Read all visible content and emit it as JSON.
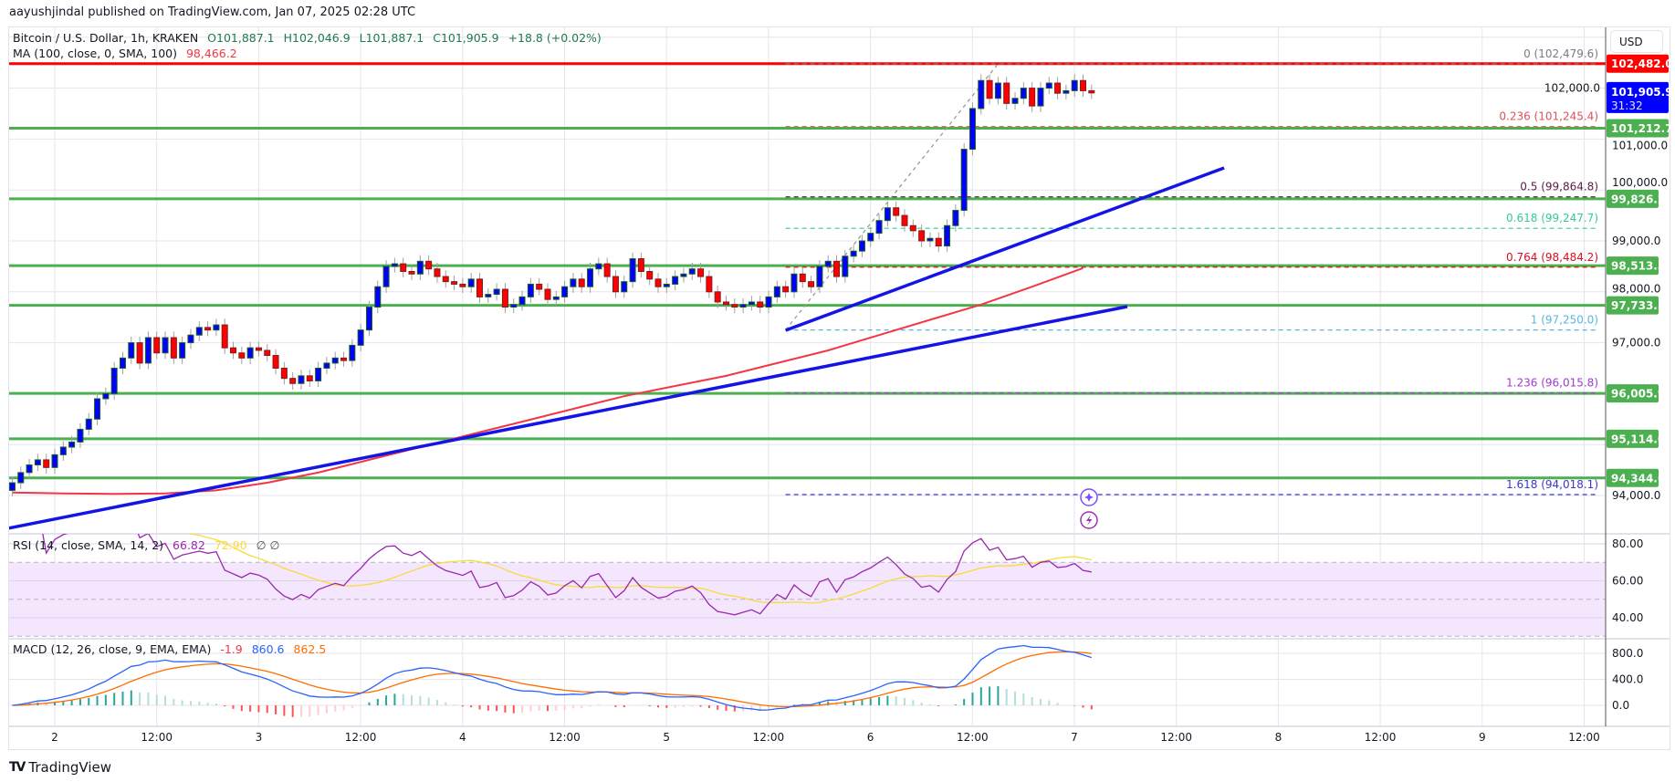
{
  "header": {
    "publisher_line": "aayushjindal published on TradingView.com, Jan 07, 2025 02:28 UTC"
  },
  "legend": {
    "symbol": "Bitcoin / U.S. Dollar, 1h, KRAKEN",
    "open": "O101,887.1",
    "high": "H102,046.9",
    "low": "L101,887.1",
    "close": "C101,905.9",
    "change": "+18.8 (+0.02%)",
    "ma_label": "MA (100, close, 0, SMA, 100)",
    "ma_value": "98,466.2"
  },
  "price_axis": {
    "currency": "USD",
    "ticks": [
      102000,
      101000,
      100000,
      99000,
      98000,
      97000,
      94000
    ]
  },
  "time_axis": {
    "labels": [
      "2",
      "12:00",
      "3",
      "12:00",
      "4",
      "12:00",
      "5",
      "12:00",
      "6",
      "12:00",
      "7",
      "12:00",
      "8",
      "12:00",
      "9",
      "12:00"
    ]
  },
  "colors": {
    "up": "#0000ff",
    "down": "#ff0000",
    "support": "#4caf50",
    "resistance": "#ff0000",
    "trendline": "#1414e6",
    "ma": "#f23645",
    "rsi": "#9c27b0",
    "rsi_ma": "#f7dc3a",
    "macd": "#2962ff",
    "signal": "#ff6d00",
    "current_price": "#0000ff"
  },
  "chart_data": {
    "type": "candlestick",
    "interval": "1h",
    "start": "2025-01-01T19:00",
    "closes": [
      94250,
      94450,
      94600,
      94700,
      94550,
      94800,
      94950,
      95050,
      95300,
      95500,
      95900,
      96000,
      96500,
      96700,
      97000,
      96600,
      97100,
      96800,
      97100,
      96700,
      97000,
      97150,
      97300,
      97250,
      97350,
      96900,
      96800,
      96700,
      96900,
      96850,
      96750,
      96500,
      96300,
      96200,
      96350,
      96250,
      96500,
      96600,
      96700,
      96650,
      96950,
      97250,
      97700,
      98100,
      98500,
      98550,
      98400,
      98350,
      98600,
      98450,
      98300,
      98200,
      98150,
      98100,
      98250,
      97900,
      97950,
      98050,
      97700,
      97750,
      97900,
      98150,
      98050,
      97850,
      97900,
      98100,
      98250,
      98100,
      98450,
      98550,
      98300,
      98000,
      98200,
      98650,
      98400,
      98250,
      98100,
      98150,
      98300,
      98350,
      98450,
      98300,
      98000,
      97800,
      97750,
      97700,
      97750,
      97800,
      97700,
      97900,
      98100,
      98000,
      98350,
      98200,
      98100,
      98500,
      98600,
      98300,
      98700,
      98800,
      99000,
      99150,
      99400,
      99650,
      99500,
      99300,
      99200,
      99000,
      99050,
      98900,
      99300,
      99600,
      100800,
      101600,
      102150,
      101800,
      102100,
      101700,
      101800,
      102000,
      101650,
      102000,
      102100,
      101900,
      101950,
      102150,
      101950,
      101905.9
    ],
    "first_open": 94100,
    "ma100": {
      "every_hours": 6,
      "values": [
        94060,
        94040,
        94030,
        94040,
        94100,
        94250,
        94450,
        94700,
        94950,
        95200,
        95450,
        95700,
        95950,
        96150,
        96350,
        96600,
        96850,
        97150,
        97450,
        97750,
        98100,
        98466.2
      ]
    },
    "horizontal_levels": [
      {
        "value": 102482.0,
        "label": "102,482.0",
        "kind": "resistance"
      },
      {
        "value": 101212.7,
        "label": "101,212.7",
        "kind": "support"
      },
      {
        "value": 99826.2,
        "label": "99,826.2",
        "kind": "support"
      },
      {
        "value": 98513.3,
        "label": "98,513.3",
        "kind": "support"
      },
      {
        "value": 97733.5,
        "label": "97,733.5",
        "kind": "support"
      },
      {
        "value": 96005.9,
        "label": "96,005.9",
        "kind": "support"
      },
      {
        "value": 95114.0,
        "label": "95,114.0",
        "kind": "support"
      },
      {
        "value": 94344.6,
        "label": "94,344.6",
        "kind": "support"
      }
    ],
    "current_price": {
      "label": "101,905.9",
      "countdown": "31:32",
      "value": 101905.9
    },
    "trendlines": [
      {
        "from": {
          "time": "2025-01-01T18:30",
          "price": 93355
        },
        "to": {
          "time": "2025-01-07T06:12",
          "price": 97710
        }
      },
      {
        "from": {
          "time": "2025-01-05T14:00",
          "price": 97244
        },
        "to": {
          "time": "2025-01-07T17:36",
          "price": 100434
        }
      }
    ],
    "fibonacci": {
      "from": {
        "time": "2025-01-05T14:00",
        "price": 97250.0
      },
      "to": {
        "time": "2025-01-06T15:00",
        "price": 102479.6
      },
      "levels": [
        {
          "ratio": 0,
          "price": 102479.6,
          "label": "0 (102,479.6)",
          "color": "#787b86"
        },
        {
          "ratio": 0.236,
          "price": 101245.4,
          "label": "0.236 (101,245.4)",
          "color": "#e0515b"
        },
        {
          "ratio": 0.5,
          "price": 99864.8,
          "label": "0.5 (99,864.8)",
          "color": "#5a1e44"
        },
        {
          "ratio": 0.618,
          "price": 99247.7,
          "label": "0.618 (99,247.7)",
          "color": "#33c9a0"
        },
        {
          "ratio": 0.764,
          "price": 98484.2,
          "label": "0.764 (98,484.2)",
          "color": "#d8101f"
        },
        {
          "ratio": 1,
          "price": 97250.0,
          "label": "1 (97,250.0)",
          "color": "#58b6e0"
        },
        {
          "ratio": 1.236,
          "price": 96015.8,
          "label": "1.236 (96,015.8)",
          "color": "#a23bd1"
        },
        {
          "ratio": 1.618,
          "price": 94018.1,
          "label": "1.618 (94,018.1)",
          "color": "#3838cc"
        }
      ]
    }
  },
  "rsi": {
    "title": "RSI (14, close, SMA, 14, 2)",
    "value": "66.82",
    "ma_value": "72.90",
    "extra": "∅ ∅",
    "length": 14,
    "ma_length": 14,
    "axis": [
      "80.00",
      "60.00",
      "40.00"
    ]
  },
  "macd": {
    "title": "MACD (12, 26, close, 9, EMA, EMA)",
    "histogram": "-1.9",
    "macd": "860.6",
    "signal": "862.5",
    "fast": 12,
    "slow": 26,
    "signal_length": 9,
    "axis": [
      "800.0",
      "400.0",
      "0.0"
    ]
  },
  "markers": [
    "plus-circle-icon",
    "lightning-icon"
  ],
  "footer": {
    "brand": "TradingView"
  }
}
